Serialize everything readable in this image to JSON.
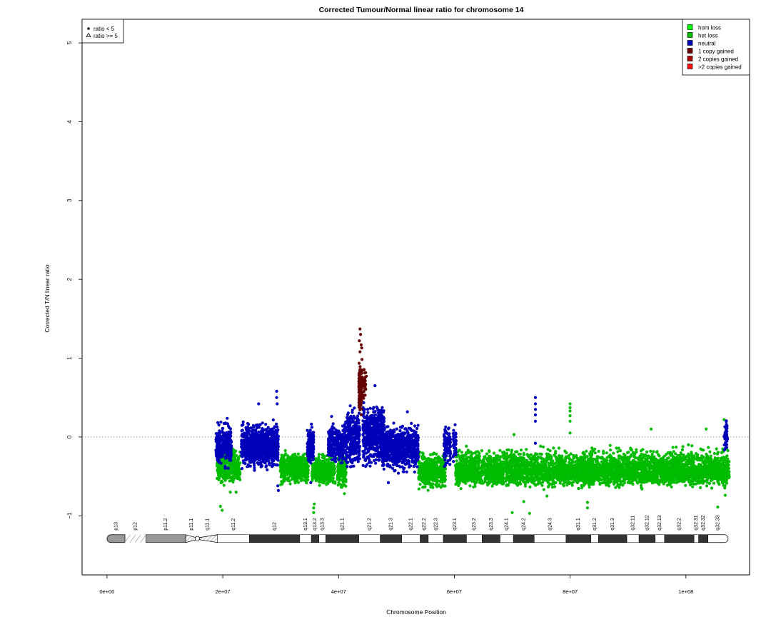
{
  "chart_data": {
    "type": "scatter",
    "title": "Corrected Tumour/Normal linear ratio for chromosome  14",
    "xlabel": "Chromosome Position",
    "ylabel": "Corrected T/N linear ratio",
    "xlim": [
      -4300000,
      111000000
    ],
    "ylim": [
      -1.75,
      5.3
    ],
    "x_ticks": [
      0,
      20000000,
      40000000,
      60000000,
      80000000,
      100000000
    ],
    "x_tick_labels": [
      "0e+00",
      "2e+07",
      "4e+07",
      "6e+07",
      "8e+07",
      "1e+08"
    ],
    "y_ticks": [
      -1,
      0,
      1,
      2,
      3,
      4,
      5
    ],
    "y_tick_labels": [
      "−1",
      "0",
      "1",
      "2",
      "3",
      "4",
      "5"
    ],
    "reference_line": {
      "y": 0,
      "style": "dotted",
      "color": "#777777"
    },
    "shape_legend": {
      "position": "top-left",
      "entries": [
        {
          "label": "ratio < 5",
          "symbol": "filled-circle"
        },
        {
          "label": "ratio >= 5",
          "symbol": "open-triangle"
        }
      ]
    },
    "legend": {
      "position": "top-right",
      "entries": [
        {
          "label": "hom loss",
          "color": "#00ff00"
        },
        {
          "label": "het loss",
          "color": "#00bb00"
        },
        {
          "label": "neutral",
          "color": "#0000bb"
        },
        {
          "label": "1 copy gained",
          "color": "#660000"
        },
        {
          "label": "2 copies gained",
          "color": "#aa0000"
        },
        {
          "label": ">2 copies gained",
          "color": "#ff1111"
        }
      ]
    },
    "series": [
      {
        "name": "het loss",
        "color": "#00bb00",
        "segments": [
          {
            "x": [
              19000000,
              22000000
            ],
            "y": [
              -0.68,
              -0.05
            ],
            "center": -0.33,
            "n": 420
          },
          {
            "x": [
              22000000,
              23000000
            ],
            "y": [
              -0.62,
              -0.12
            ],
            "center": -0.4,
            "n": 90
          },
          {
            "x": [
              29900000,
              34800000
            ],
            "y": [
              -0.65,
              -0.13
            ],
            "center": -0.4,
            "n": 500
          },
          {
            "x": [
              35400000,
              39400000
            ],
            "y": [
              -0.65,
              -0.18
            ],
            "center": -0.42,
            "n": 350
          },
          {
            "x": [
              39800000,
              41300000
            ],
            "y": [
              -0.7,
              -0.18
            ],
            "center": -0.43,
            "n": 160
          },
          {
            "x": [
              53800000,
              58500000
            ],
            "y": [
              -0.7,
              -0.15
            ],
            "center": -0.43,
            "n": 500
          },
          {
            "x": [
              60200000,
              107500000
            ],
            "y": [
              -0.68,
              -0.08
            ],
            "center": -0.43,
            "n": 4200
          }
        ],
        "outliers": [
          [
            19600000,
            -0.88
          ],
          [
            19900000,
            -0.93
          ],
          [
            21300000,
            -0.7
          ],
          [
            22300000,
            -0.7
          ],
          [
            35700000,
            -0.96
          ],
          [
            35700000,
            -0.9
          ],
          [
            35800000,
            -0.85
          ],
          [
            41000000,
            -0.72
          ],
          [
            70000000,
            -0.96
          ],
          [
            70300000,
            0.03
          ],
          [
            72000000,
            -0.82
          ],
          [
            73000000,
            -0.97
          ],
          [
            80000000,
            0.42
          ],
          [
            80000000,
            0.37
          ],
          [
            80000000,
            0.33
          ],
          [
            80000000,
            0.27
          ],
          [
            80000000,
            0.2
          ],
          [
            80000000,
            0.05
          ],
          [
            83000000,
            -0.83
          ],
          [
            83000000,
            -0.9
          ],
          [
            94000000,
            0.1
          ],
          [
            103500000,
            0.1
          ],
          [
            105500000,
            -0.89
          ],
          [
            106600000,
            0.22
          ],
          [
            106800000,
            -0.74
          ],
          [
            76000000,
            -0.75
          ]
        ]
      },
      {
        "name": "neutral",
        "color": "#0000bb",
        "segments": [
          {
            "x": [
              18800000,
              21500000
            ],
            "y": [
              -0.45,
              0.28
            ],
            "center": -0.1,
            "n": 260
          },
          {
            "x": [
              23200000,
              29600000
            ],
            "y": [
              -0.45,
              0.25
            ],
            "center": -0.12,
            "n": 900
          },
          {
            "x": [
              34600000,
              35700000
            ],
            "y": [
              -0.4,
              0.22
            ],
            "center": -0.1,
            "n": 140
          },
          {
            "x": [
              38200000,
              41000000
            ],
            "y": [
              -0.38,
              0.2
            ],
            "center": -0.1,
            "n": 260
          },
          {
            "x": [
              41000000,
              43700000
            ],
            "y": [
              -0.5,
              0.48
            ],
            "center": 0.0,
            "n": 320
          },
          {
            "x": [
              44200000,
              47900000
            ],
            "y": [
              -0.5,
              0.48
            ],
            "center": 0.05,
            "n": 520
          },
          {
            "x": [
              47500000,
              53800000
            ],
            "y": [
              -0.5,
              0.22
            ],
            "center": -0.12,
            "n": 800
          },
          {
            "x": [
              58200000,
              59400000
            ],
            "y": [
              -0.45,
              0.2
            ],
            "center": -0.1,
            "n": 100
          },
          {
            "x": [
              59800000,
              60300000
            ],
            "y": [
              -0.5,
              0.25
            ],
            "center": -0.05,
            "n": 50
          },
          {
            "x": [
              106600000,
              107200000
            ],
            "y": [
              -0.3,
              0.27
            ],
            "center": 0.0,
            "n": 40
          }
        ],
        "outliers": [
          [
            29300000,
            0.58
          ],
          [
            29300000,
            0.5
          ],
          [
            29400000,
            0.42
          ],
          [
            29500000,
            -0.62
          ],
          [
            29600000,
            -0.68
          ],
          [
            26200000,
            0.42
          ],
          [
            38800000,
            0.26
          ],
          [
            46300000,
            0.65
          ],
          [
            48600000,
            -0.58
          ],
          [
            51900000,
            0.32
          ],
          [
            74000000,
            0.5
          ],
          [
            74000000,
            0.42
          ],
          [
            74000000,
            0.35
          ],
          [
            74000000,
            0.28
          ],
          [
            74000000,
            0.2
          ],
          [
            74000000,
            -0.08
          ],
          [
            35200000,
            -0.58
          ],
          [
            43800000,
            0.55
          ]
        ]
      },
      {
        "name": "1 copy gained",
        "color": "#660000",
        "segments": [
          {
            "x": [
              43500000,
              44100000
            ],
            "y": [
              0.25,
              1.05
            ],
            "center": 0.62,
            "n": 170
          },
          {
            "x": [
              44300000,
              44700000
            ],
            "y": [
              0.45,
              0.97
            ],
            "center": 0.68,
            "n": 25
          }
        ],
        "outliers": [
          [
            43700000,
            1.37
          ],
          [
            43800000,
            1.3
          ],
          [
            43600000,
            1.22
          ],
          [
            43900000,
            1.17
          ],
          [
            44000000,
            1.13
          ],
          [
            43700000,
            1.08
          ],
          [
            44800000,
            0.77
          ],
          [
            44600000,
            0.53
          ]
        ]
      }
    ],
    "cytoband": {
      "bands": [
        {
          "label": "p13",
          "start": 0,
          "end": 3100000,
          "stain": "acen-left"
        },
        {
          "label": "p12",
          "start": 3100000,
          "end": 6700000,
          "stain": "stalk"
        },
        {
          "label": "p11.2",
          "start": 6700000,
          "end": 13600000,
          "stain": "gvar"
        },
        {
          "label": "p11.1",
          "start": 13600000,
          "end": 15600000,
          "stain": "hatched"
        },
        {
          "label": "q11.1",
          "start": 15600000,
          "end": 19100000,
          "stain": "hatched"
        },
        {
          "label": "q11.2",
          "start": 19100000,
          "end": 24600000,
          "stain": "gneg"
        },
        {
          "label": "q12",
          "start": 24600000,
          "end": 33300000,
          "stain": "gpos"
        },
        {
          "label": "q13.1",
          "start": 33300000,
          "end": 35300000,
          "stain": "gneg"
        },
        {
          "label": "q13.2",
          "start": 35300000,
          "end": 36600000,
          "stain": "gpos"
        },
        {
          "label": "q13.3",
          "start": 36600000,
          "end": 37800000,
          "stain": "gneg"
        },
        {
          "label": "q21.1",
          "start": 37800000,
          "end": 43500000,
          "stain": "gpos"
        },
        {
          "label": "q21.2",
          "start": 43500000,
          "end": 47200000,
          "stain": "gneg"
        },
        {
          "label": "q21.3",
          "start": 47200000,
          "end": 50900000,
          "stain": "gpos"
        },
        {
          "label": "q22.1",
          "start": 50900000,
          "end": 54100000,
          "stain": "gneg"
        },
        {
          "label": "q22.2",
          "start": 54100000,
          "end": 55500000,
          "stain": "gpos"
        },
        {
          "label": "q22.3",
          "start": 55500000,
          "end": 58100000,
          "stain": "gneg"
        },
        {
          "label": "q23.1",
          "start": 58100000,
          "end": 62100000,
          "stain": "gpos"
        },
        {
          "label": "q23.2",
          "start": 62100000,
          "end": 64800000,
          "stain": "gneg"
        },
        {
          "label": "q23.3",
          "start": 64800000,
          "end": 67900000,
          "stain": "gpos"
        },
        {
          "label": "q24.1",
          "start": 67900000,
          "end": 70200000,
          "stain": "gneg"
        },
        {
          "label": "q24.2",
          "start": 70200000,
          "end": 73800000,
          "stain": "gpos"
        },
        {
          "label": "q24.3",
          "start": 73800000,
          "end": 79300000,
          "stain": "gneg"
        },
        {
          "label": "q31.1",
          "start": 79300000,
          "end": 83600000,
          "stain": "gpos"
        },
        {
          "label": "q31.2",
          "start": 83600000,
          "end": 84900000,
          "stain": "gneg"
        },
        {
          "label": "q31.3",
          "start": 84900000,
          "end": 89800000,
          "stain": "gpos"
        },
        {
          "label": "q32.11",
          "start": 89800000,
          "end": 91900000,
          "stain": "gneg"
        },
        {
          "label": "q32.12",
          "start": 91900000,
          "end": 94700000,
          "stain": "gpos"
        },
        {
          "label": "q32.13",
          "start": 94700000,
          "end": 96300000,
          "stain": "gneg"
        },
        {
          "label": "q32.2",
          "start": 96300000,
          "end": 101400000,
          "stain": "gpos"
        },
        {
          "label": "q32.31",
          "start": 101400000,
          "end": 102200000,
          "stain": "gneg"
        },
        {
          "label": "q32.32",
          "start": 102200000,
          "end": 103800000,
          "stain": "gpos"
        },
        {
          "label": "q32.33",
          "start": 103800000,
          "end": 107300000,
          "stain": "gneg-end"
        }
      ]
    }
  }
}
